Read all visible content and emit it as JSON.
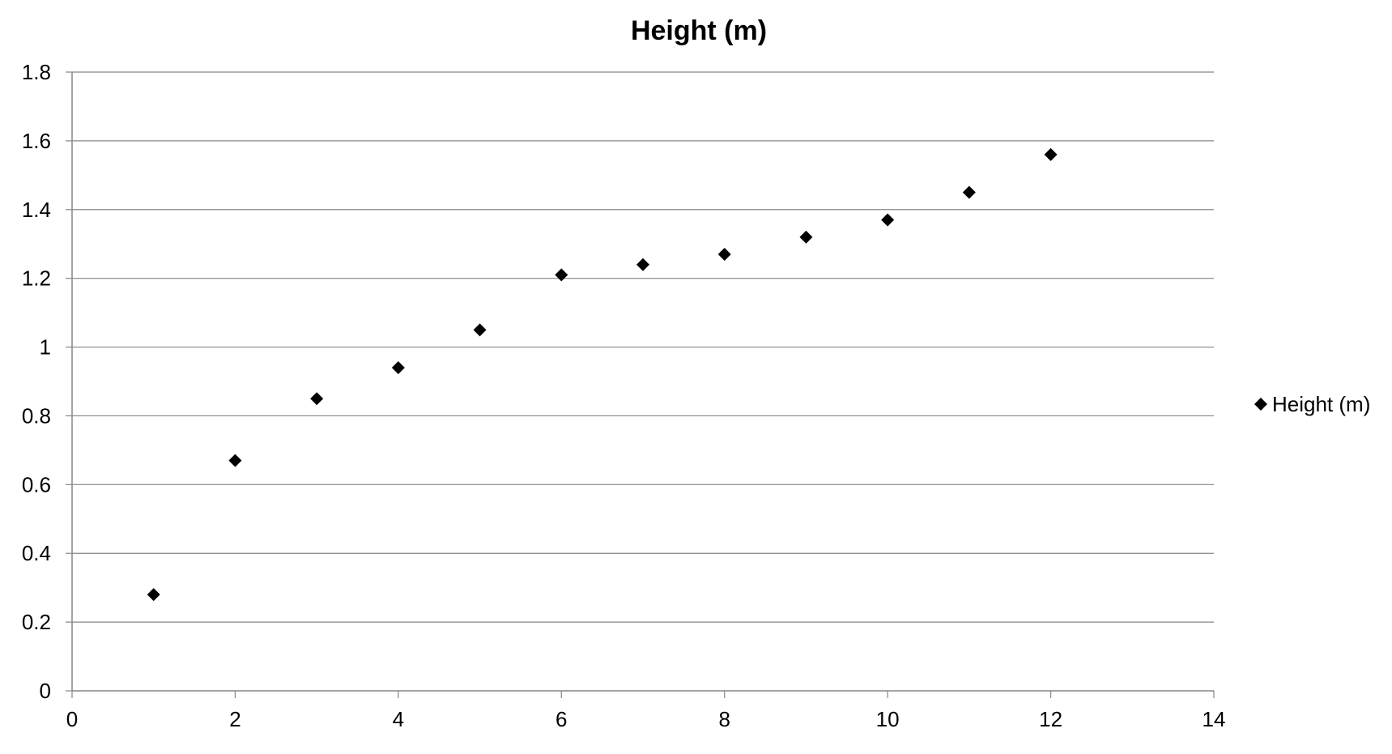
{
  "chart_data": {
    "type": "scatter",
    "title": "Height (m)",
    "xlabel": "",
    "ylabel": "",
    "xlim": [
      0,
      14
    ],
    "ylim": [
      0,
      1.8
    ],
    "x_ticks": [
      "0",
      "2",
      "4",
      "6",
      "8",
      "10",
      "12",
      "14"
    ],
    "y_ticks": [
      "0",
      "0.2",
      "0.4",
      "0.6",
      "0.8",
      "1",
      "1.2",
      "1.4",
      "1.6",
      "1.8"
    ],
    "grid": "horizontal",
    "legend_position": "right",
    "marker": "diamond",
    "series": [
      {
        "name": "Height (m)",
        "color": "#000000",
        "x": [
          1,
          2,
          3,
          4,
          5,
          6,
          7,
          8,
          9,
          10,
          11,
          12
        ],
        "y": [
          0.28,
          0.67,
          0.85,
          0.94,
          1.05,
          1.21,
          1.24,
          1.27,
          1.32,
          1.37,
          1.45,
          1.56
        ]
      }
    ]
  },
  "colors": {
    "background": "#ffffff",
    "gridline": "#868686",
    "axis": "#868686",
    "marker": "#000000"
  }
}
